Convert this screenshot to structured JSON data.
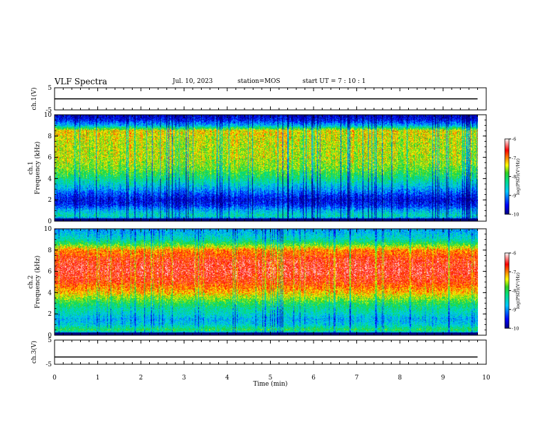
{
  "header": {
    "title": "VLF Spectra",
    "date": "Jul. 10, 2023",
    "station": "station=MOS",
    "start": "start UT =  7 : 10 : 1"
  },
  "chart_data": [
    {
      "type": "line",
      "panel": "ch1-waveform",
      "ylabel": "ch.1(V)",
      "ylim": [
        -5,
        5
      ],
      "yticks": [
        "5",
        "-5"
      ],
      "xlim": [
        0,
        10
      ],
      "series": [
        {
          "x": [
            0,
            9.8
          ],
          "y": [
            0,
            0
          ]
        }
      ]
    },
    {
      "type": "heatmap",
      "panel": "ch1-spectrogram",
      "ylabel": "ch.1 Frequency (kHz)",
      "ylim": [
        0,
        10
      ],
      "yticks": [
        "0",
        "2",
        "4",
        "6",
        "8",
        "10"
      ],
      "xlim": [
        0,
        10
      ],
      "data_end_min": 9.8,
      "colorbar": {
        "label": "log(PSD)(V²/Hz)",
        "ticks": [
          "-6",
          "-7",
          "-8",
          "-9",
          "-10"
        ],
        "range": [
          -10,
          -6
        ]
      },
      "profile_khz": [
        0,
        0.5,
        1,
        1.5,
        2,
        2.5,
        3,
        4,
        5,
        6,
        7,
        8,
        8.5,
        9,
        9.5,
        10
      ],
      "profile_logpsd": [
        -9.6,
        -8.4,
        -8.8,
        -9.4,
        -9.6,
        -9.3,
        -8.9,
        -8.2,
        -7.7,
        -7.5,
        -7.5,
        -7.4,
        -7.3,
        -8.8,
        -9.5,
        -9.8
      ]
    },
    {
      "type": "heatmap",
      "panel": "ch2-spectrogram",
      "ylabel": "ch.2 Frequency (kHz)",
      "ylim": [
        0,
        10
      ],
      "yticks": [
        "0",
        "2",
        "4",
        "6",
        "8",
        "10"
      ],
      "xlim": [
        0,
        10
      ],
      "data_end_min": 9.8,
      "colorbar": {
        "label": "log(PSD)(V²/Hz)",
        "ticks": [
          "-6",
          "-7",
          "-8",
          "-9",
          "-10"
        ],
        "range": [
          -10,
          -6
        ]
      },
      "profile_khz": [
        0,
        0.5,
        1,
        1.5,
        2,
        2.5,
        3,
        3.5,
        4,
        5,
        6,
        7,
        8,
        8.5,
        9,
        9.5,
        10
      ],
      "profile_logpsd": [
        -9.5,
        -8.0,
        -8.6,
        -8.8,
        -8.5,
        -8.3,
        -8.0,
        -7.6,
        -7.2,
        -6.7,
        -6.5,
        -6.6,
        -7.0,
        -7.8,
        -8.4,
        -8.7,
        -8.9
      ]
    },
    {
      "type": "line",
      "panel": "ch3-waveform",
      "ylabel": "ch.3(V)",
      "ylim": [
        -5,
        5
      ],
      "yticks": [
        "5",
        "-5"
      ],
      "xlabel": "Time  (min)",
      "xlim": [
        0,
        10
      ],
      "xticks": [
        "0",
        "1",
        "2",
        "3",
        "4",
        "5",
        "6",
        "7",
        "8",
        "9",
        "10"
      ],
      "series": [
        {
          "x": [
            0,
            9.8
          ],
          "y": [
            -2,
            -2
          ]
        }
      ]
    }
  ]
}
